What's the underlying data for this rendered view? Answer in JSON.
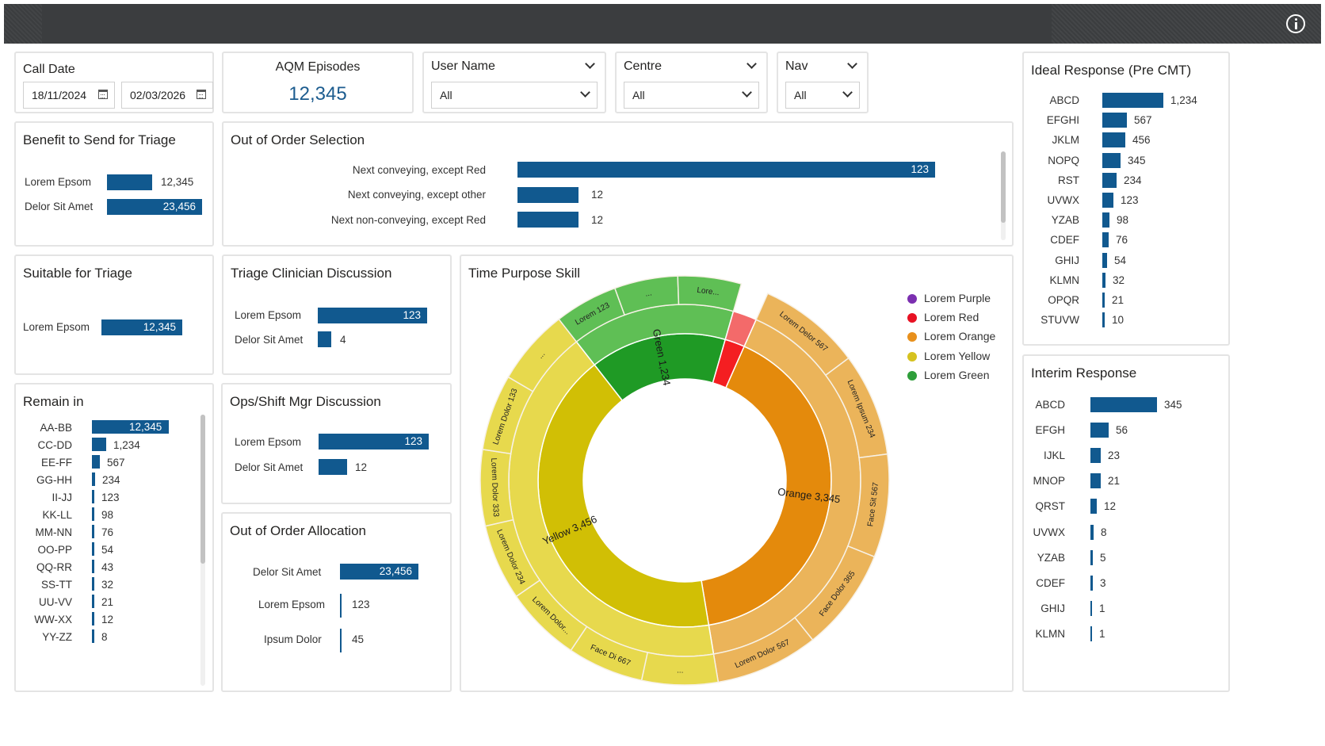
{
  "call_date": {
    "title": "Call Date",
    "from": "18/11/2024",
    "to": "02/03/2026"
  },
  "aqm": {
    "title": "AQM Episodes",
    "value": "12,345"
  },
  "filters": [
    {
      "label": "User Name",
      "value": "All"
    },
    {
      "label": "Centre",
      "value": "All"
    },
    {
      "label": "Nav",
      "value": "All"
    }
  ],
  "benefit": {
    "title": "Benefit to Send for Triage",
    "rows": [
      {
        "label": "Lorem Epsom",
        "value": "12,345",
        "frac": 0.526
      },
      {
        "label": "Delor Sit Amet",
        "value": "23,456",
        "frac": 1.0
      }
    ]
  },
  "out_of_order_selection": {
    "title": "Out of Order Selection",
    "rows": [
      {
        "label": "Next conveying, except Red",
        "value": "123",
        "frac": 1.0
      },
      {
        "label": "Next conveying, except other",
        "value": "12",
        "frac": 0.146
      },
      {
        "label": "Next non-conveying, except Red",
        "value": "12",
        "frac": 0.146
      }
    ]
  },
  "suitable": {
    "title": "Suitable for Triage",
    "rows": [
      {
        "label": "Lorem Epsom",
        "value": "12,345",
        "frac": 1.0
      }
    ]
  },
  "triage_clinician": {
    "title": "Triage Clinician Discussion",
    "rows": [
      {
        "label": "Lorem Epsom",
        "value": "123",
        "frac": 1.0
      },
      {
        "label": "Delor Sit Amet",
        "value": "4",
        "frac": 0.12
      }
    ]
  },
  "ops_shift": {
    "title": "Ops/Shift Mgr Discussion",
    "rows": [
      {
        "label": "Lorem Epsom",
        "value": "123",
        "frac": 1.0
      },
      {
        "label": "Delor Sit Amet",
        "value": "12",
        "frac": 0.26
      }
    ]
  },
  "out_of_order_allocation": {
    "title": "Out of Order Allocation",
    "rows": [
      {
        "label": "Delor Sit Amet",
        "value": "23,456",
        "frac": 1.0
      },
      {
        "label": "Lorem Epsom",
        "value": "123",
        "frac": 0.02
      },
      {
        "label": "Ipsum Dolor",
        "value": "45",
        "frac": 0.02
      }
    ]
  },
  "remain_in": {
    "title": "Remain in",
    "rows": [
      {
        "label": "AA-BB",
        "value": "12,345",
        "frac": 1.0
      },
      {
        "label": "CC-DD",
        "value": "1,234",
        "frac": 0.19
      },
      {
        "label": "EE-FF",
        "value": "567",
        "frac": 0.1
      },
      {
        "label": "GG-HH",
        "value": "234",
        "frac": 0.04
      },
      {
        "label": "II-JJ",
        "value": "123",
        "frac": 0.02
      },
      {
        "label": "KK-LL",
        "value": "98",
        "frac": 0.02
      },
      {
        "label": "MM-NN",
        "value": "76",
        "frac": 0.02
      },
      {
        "label": "OO-PP",
        "value": "54",
        "frac": 0.02
      },
      {
        "label": "QQ-RR",
        "value": "43",
        "frac": 0.02
      },
      {
        "label": "SS-TT",
        "value": "32",
        "frac": 0.02
      },
      {
        "label": "UU-VV",
        "value": "21",
        "frac": 0.02
      },
      {
        "label": "WW-XX",
        "value": "12",
        "frac": 0.02
      },
      {
        "label": "YY-ZZ",
        "value": "8",
        "frac": 0.02
      }
    ]
  },
  "time_purpose": {
    "title": "Time Purpose Skill",
    "legend": [
      {
        "label": "Lorem Purple",
        "color": "#7b2fb0"
      },
      {
        "label": "Lorem Red",
        "color": "#e81123"
      },
      {
        "label": "Lorem Orange",
        "color": "#e8901c"
      },
      {
        "label": "Lorem Yellow",
        "color": "#d6c21f"
      },
      {
        "label": "Lorem Green",
        "color": "#2e9e3a"
      }
    ],
    "chart_data": {
      "type": "sunburst",
      "inner": [
        {
          "name": "Green",
          "value": 1234,
          "label": "Green 1,234"
        },
        {
          "name": "Red",
          "value": 180
        },
        {
          "name": "Orange",
          "value": 3345,
          "label": "Orange 3,345"
        },
        {
          "name": "Yellow",
          "value": 3456,
          "label": "Yellow 3,456"
        }
      ],
      "outer": [
        {
          "parent": "Green",
          "label": "Lorem 123"
        },
        {
          "parent": "Green",
          "label": "..."
        },
        {
          "parent": "Green",
          "label": "Lore..."
        },
        {
          "parent": "Orange",
          "label": "Lorem Delor 567"
        },
        {
          "parent": "Orange",
          "label": "Lorem Ipsum 234"
        },
        {
          "parent": "Orange",
          "label": "Face Sit 567"
        },
        {
          "parent": "Orange",
          "label": "Face Dolor 365"
        },
        {
          "parent": "Orange",
          "label": "Lorem Dolor 567"
        },
        {
          "parent": "Yellow",
          "label": "..."
        },
        {
          "parent": "Yellow",
          "label": "Face Di 667"
        },
        {
          "parent": "Yellow",
          "label": "Lorem Dolor..."
        },
        {
          "parent": "Yellow",
          "label": "Lorem Dolor 234"
        },
        {
          "parent": "Yellow",
          "label": "Lorem Dolor 333"
        },
        {
          "parent": "Yellow",
          "label": "Lorem Dolor 133"
        },
        {
          "parent": "Yellow",
          "label": "..."
        }
      ]
    }
  },
  "ideal_response": {
    "title": "Ideal Response (Pre CMT)",
    "rows": [
      {
        "label": "ABCD",
        "value": "1,234",
        "frac": 1.0
      },
      {
        "label": "EFGHI",
        "value": "567",
        "frac": 0.4
      },
      {
        "label": "JKLM",
        "value": "456",
        "frac": 0.38
      },
      {
        "label": "NOPQ",
        "value": "345",
        "frac": 0.3
      },
      {
        "label": "RST",
        "value": "234",
        "frac": 0.24
      },
      {
        "label": "UVWX",
        "value": "123",
        "frac": 0.18
      },
      {
        "label": "YZAB",
        "value": "98",
        "frac": 0.12
      },
      {
        "label": "CDEF",
        "value": "76",
        "frac": 0.1
      },
      {
        "label": "GHIJ",
        "value": "54",
        "frac": 0.08
      },
      {
        "label": "KLMN",
        "value": "32",
        "frac": 0.05
      },
      {
        "label": "OPQR",
        "value": "21",
        "frac": 0.04
      },
      {
        "label": "STUVW",
        "value": "10",
        "frac": 0.03
      }
    ]
  },
  "interim_response": {
    "title": "Interim Response",
    "rows": [
      {
        "label": "ABCD",
        "value": "345",
        "frac": 1.0
      },
      {
        "label": "EFGH",
        "value": "56",
        "frac": 0.27
      },
      {
        "label": "IJKL",
        "value": "23",
        "frac": 0.16
      },
      {
        "label": "MNOP",
        "value": "21",
        "frac": 0.15
      },
      {
        "label": "QRST",
        "value": "12",
        "frac": 0.1
      },
      {
        "label": "UVWX",
        "value": "8",
        "frac": 0.05
      },
      {
        "label": "YZAB",
        "value": "5",
        "frac": 0.04
      },
      {
        "label": "CDEF",
        "value": "3",
        "frac": 0.03
      },
      {
        "label": "GHIJ",
        "value": "1",
        "frac": 0.02
      },
      {
        "label": "KLMN",
        "value": "1",
        "frac": 0.02
      }
    ]
  }
}
